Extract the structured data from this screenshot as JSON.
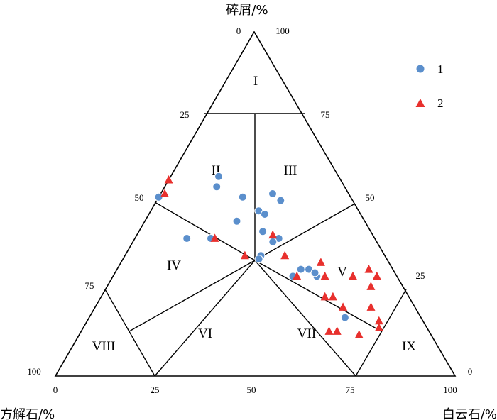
{
  "chart_data": {
    "type": "scatter",
    "subtype": "ternary",
    "axes": {
      "top": {
        "label": "碎屑/%",
        "apex_value": "100",
        "corner_zero_label": "0"
      },
      "left": {
        "label": "方解石/%",
        "apex_value": "100"
      },
      "right": {
        "label": "白云石/%",
        "apex_value": "100",
        "corner_zero_label": "0"
      }
    },
    "left_edge_ticks": [
      "25",
      "50",
      "75"
    ],
    "right_edge_ticks": [
      "75",
      "50",
      "25"
    ],
    "bottom_ticks": [
      "0",
      "25",
      "50",
      "75",
      "100"
    ],
    "regions": [
      "I",
      "II",
      "III",
      "IV",
      "V",
      "VI",
      "VII",
      "VIII",
      "IX"
    ],
    "legend": [
      "1",
      "2"
    ],
    "colors": {
      "series1": "#5b8fcc",
      "series2": "#e8302d"
    },
    "series": [
      {
        "name": "1",
        "marker": "circle",
        "points": [
          {
            "detritus": 52,
            "calcite": 48,
            "dolomite": 0
          },
          {
            "detritus": 40,
            "calcite": 47,
            "dolomite": 13
          },
          {
            "detritus": 40,
            "calcite": 41,
            "dolomite": 19
          },
          {
            "detritus": 45,
            "calcite": 32,
            "dolomite": 23
          },
          {
            "detritus": 55,
            "calcite": 32,
            "dolomite": 13
          },
          {
            "detritus": 58,
            "calcite": 30,
            "dolomite": 12
          },
          {
            "detritus": 52,
            "calcite": 27,
            "dolomite": 21
          },
          {
            "detritus": 48,
            "calcite": 25,
            "dolomite": 27
          },
          {
            "detritus": 47,
            "calcite": 24,
            "dolomite": 29
          },
          {
            "detritus": 53,
            "calcite": 19,
            "dolomite": 28
          },
          {
            "detritus": 51,
            "calcite": 18,
            "dolomite": 31
          },
          {
            "detritus": 42,
            "calcite": 27,
            "dolomite": 31
          },
          {
            "detritus": 40,
            "calcite": 24,
            "dolomite": 36
          },
          {
            "detritus": 39,
            "calcite": 26,
            "dolomite": 35
          },
          {
            "detritus": 35,
            "calcite": 31,
            "dolomite": 34
          },
          {
            "detritus": 34,
            "calcite": 32,
            "dolomite": 34
          },
          {
            "detritus": 31,
            "calcite": 23,
            "dolomite": 46
          },
          {
            "detritus": 31,
            "calcite": 21,
            "dolomite": 48
          },
          {
            "detritus": 30,
            "calcite": 20,
            "dolomite": 50
          },
          {
            "detritus": 29,
            "calcite": 20,
            "dolomite": 51
          },
          {
            "detritus": 30,
            "calcite": 20,
            "dolomite": 50
          },
          {
            "detritus": 29,
            "calcite": 26,
            "dolomite": 45
          },
          {
            "detritus": 17,
            "calcite": 19,
            "dolomite": 64
          }
        ]
      },
      {
        "name": "2",
        "marker": "triangle",
        "points": [
          {
            "detritus": 57,
            "calcite": 43,
            "dolomite": 0
          },
          {
            "detritus": 53,
            "calcite": 46,
            "dolomite": 1
          },
          {
            "detritus": 40,
            "calcite": 40,
            "dolomite": 20
          },
          {
            "detritus": 41,
            "calcite": 25,
            "dolomite": 34
          },
          {
            "detritus": 35,
            "calcite": 35,
            "dolomite": 30
          },
          {
            "detritus": 35,
            "calcite": 25,
            "dolomite": 40
          },
          {
            "detritus": 29,
            "calcite": 25,
            "dolomite": 46
          },
          {
            "detritus": 33,
            "calcite": 17,
            "dolomite": 50
          },
          {
            "detritus": 29,
            "calcite": 18,
            "dolomite": 53
          },
          {
            "detritus": 29,
            "calcite": 11,
            "dolomite": 60
          },
          {
            "detritus": 31,
            "calcite": 6,
            "dolomite": 63
          },
          {
            "detritus": 29,
            "calcite": 5,
            "dolomite": 66
          },
          {
            "detritus": 23,
            "calcite": 21,
            "dolomite": 56
          },
          {
            "detritus": 23,
            "calcite": 19,
            "dolomite": 58
          },
          {
            "detritus": 20,
            "calcite": 18,
            "dolomite": 62
          },
          {
            "detritus": 26,
            "calcite": 8,
            "dolomite": 66
          },
          {
            "detritus": 20,
            "calcite": 11,
            "dolomite": 69
          },
          {
            "detritus": 16,
            "calcite": 11,
            "dolomite": 73
          },
          {
            "detritus": 13,
            "calcite": 25,
            "dolomite": 62
          },
          {
            "detritus": 13,
            "calcite": 23,
            "dolomite": 64
          },
          {
            "detritus": 14,
            "calcite": 12,
            "dolomite": 74
          },
          {
            "detritus": 12,
            "calcite": 18,
            "dolomite": 70
          }
        ]
      }
    ]
  }
}
